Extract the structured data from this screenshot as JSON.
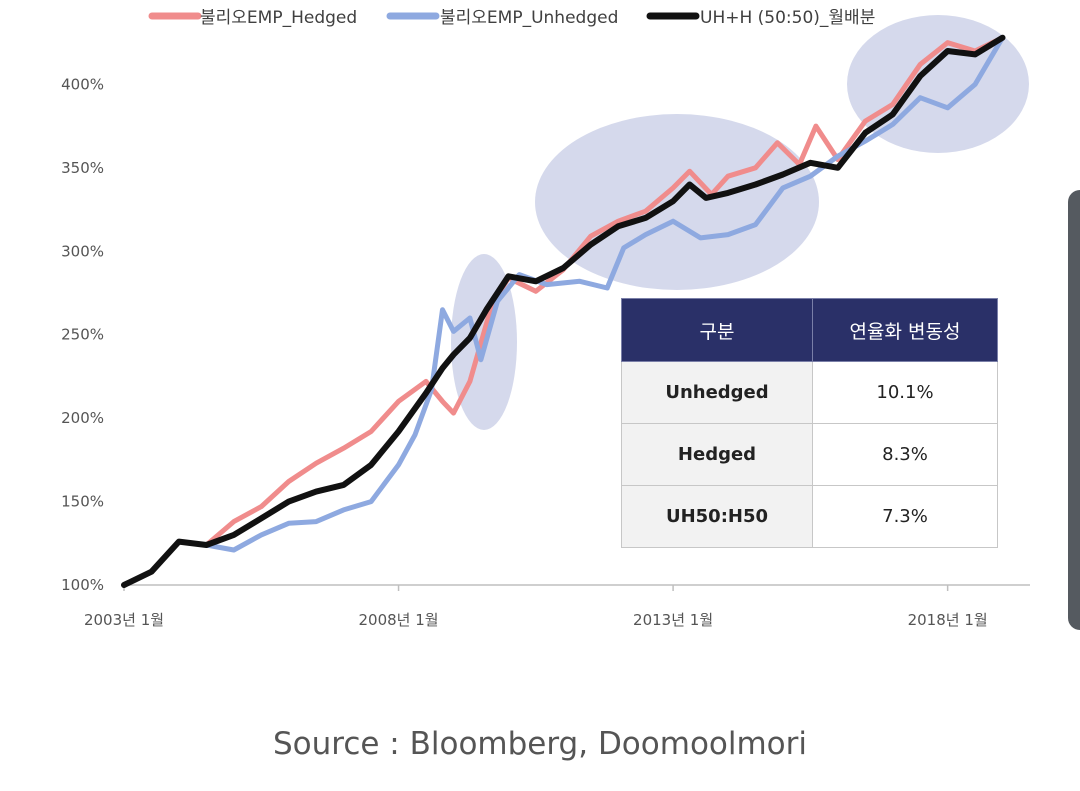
{
  "chart_data": {
    "type": "line",
    "series": [
      {
        "name": "불리오EMP_Hedged",
        "color": "#f08c8c",
        "points": [
          [
            2003.0,
            100
          ],
          [
            2003.5,
            108
          ],
          [
            2004.0,
            126
          ],
          [
            2004.5,
            124
          ],
          [
            2005.0,
            138
          ],
          [
            2005.5,
            147
          ],
          [
            2006.0,
            162
          ],
          [
            2006.5,
            173
          ],
          [
            2007.0,
            182
          ],
          [
            2007.5,
            192
          ],
          [
            2008.0,
            210
          ],
          [
            2008.5,
            222
          ],
          [
            2008.8,
            210
          ],
          [
            2009.0,
            203
          ],
          [
            2009.3,
            222
          ],
          [
            2009.7,
            268
          ],
          [
            2010.0,
            284
          ],
          [
            2010.5,
            276
          ],
          [
            2011.0,
            289
          ],
          [
            2011.5,
            309
          ],
          [
            2012.0,
            318
          ],
          [
            2012.5,
            324
          ],
          [
            2013.0,
            338
          ],
          [
            2013.3,
            348
          ],
          [
            2013.7,
            334
          ],
          [
            2014.0,
            345
          ],
          [
            2014.5,
            350
          ],
          [
            2014.9,
            365
          ],
          [
            2015.3,
            352
          ],
          [
            2015.6,
            375
          ],
          [
            2016.0,
            355
          ],
          [
            2016.5,
            378
          ],
          [
            2017.0,
            388
          ],
          [
            2017.5,
            412
          ],
          [
            2018.0,
            425
          ],
          [
            2018.5,
            420
          ],
          [
            2019.0,
            428
          ]
        ]
      },
      {
        "name": "불리오EMP_Unhedged",
        "color": "#8ea9e0",
        "points": [
          [
            2003.0,
            100
          ],
          [
            2003.5,
            108
          ],
          [
            2004.0,
            126
          ],
          [
            2004.5,
            124
          ],
          [
            2005.0,
            121
          ],
          [
            2005.5,
            130
          ],
          [
            2006.0,
            137
          ],
          [
            2006.5,
            138
          ],
          [
            2007.0,
            145
          ],
          [
            2007.5,
            150
          ],
          [
            2008.0,
            172
          ],
          [
            2008.3,
            190
          ],
          [
            2008.6,
            217
          ],
          [
            2008.8,
            265
          ],
          [
            2009.0,
            252
          ],
          [
            2009.3,
            260
          ],
          [
            2009.5,
            235
          ],
          [
            2009.8,
            270
          ],
          [
            2010.2,
            286
          ],
          [
            2010.7,
            280
          ],
          [
            2011.3,
            282
          ],
          [
            2011.8,
            278
          ],
          [
            2012.1,
            302
          ],
          [
            2012.5,
            310
          ],
          [
            2013.0,
            318
          ],
          [
            2013.5,
            308
          ],
          [
            2014.0,
            310
          ],
          [
            2014.5,
            316
          ],
          [
            2015.0,
            338
          ],
          [
            2015.5,
            345
          ],
          [
            2016.0,
            357
          ],
          [
            2016.5,
            366
          ],
          [
            2017.0,
            376
          ],
          [
            2017.5,
            392
          ],
          [
            2018.0,
            386
          ],
          [
            2018.5,
            400
          ],
          [
            2019.0,
            428
          ]
        ]
      },
      {
        "name": "UH+H (50:50)_월배분",
        "color": "#111111",
        "points": [
          [
            2003.0,
            100
          ],
          [
            2003.5,
            108
          ],
          [
            2004.0,
            126
          ],
          [
            2004.5,
            124
          ],
          [
            2005.0,
            130
          ],
          [
            2005.5,
            140
          ],
          [
            2006.0,
            150
          ],
          [
            2006.5,
            156
          ],
          [
            2007.0,
            160
          ],
          [
            2007.5,
            172
          ],
          [
            2008.0,
            192
          ],
          [
            2008.5,
            215
          ],
          [
            2008.8,
            230
          ],
          [
            2009.0,
            238
          ],
          [
            2009.3,
            248
          ],
          [
            2009.6,
            265
          ],
          [
            2010.0,
            285
          ],
          [
            2010.5,
            282
          ],
          [
            2011.0,
            290
          ],
          [
            2011.5,
            304
          ],
          [
            2012.0,
            315
          ],
          [
            2012.5,
            320
          ],
          [
            2013.0,
            330
          ],
          [
            2013.3,
            340
          ],
          [
            2013.6,
            332
          ],
          [
            2014.0,
            335
          ],
          [
            2014.5,
            340
          ],
          [
            2015.0,
            346
          ],
          [
            2015.5,
            353
          ],
          [
            2016.0,
            350
          ],
          [
            2016.5,
            371
          ],
          [
            2017.0,
            382
          ],
          [
            2017.5,
            405
          ],
          [
            2018.0,
            420
          ],
          [
            2018.5,
            418
          ],
          [
            2019.0,
            428
          ]
        ]
      }
    ],
    "x_ticks": [
      "2003년 1월",
      "2008년 1월",
      "2013년 1월",
      "2018년 1월"
    ],
    "x_tick_values": [
      2003,
      2008,
      2013,
      2018
    ],
    "y_ticks": [
      "100%",
      "150%",
      "200%",
      "250%",
      "300%",
      "350%",
      "400%"
    ],
    "y_tick_values": [
      100,
      150,
      200,
      250,
      300,
      350,
      400
    ],
    "xlim": [
      2003,
      2019.5
    ],
    "ylim": [
      100,
      432
    ],
    "grid": false,
    "legend": "top"
  },
  "table": {
    "headers": [
      "구분",
      "연율화 변동성"
    ],
    "rows": [
      {
        "category": "Unhedged",
        "value": "10.1%"
      },
      {
        "category": "Hedged",
        "value": "8.3%"
      },
      {
        "category": "UH50:H50",
        "value": "7.3%"
      }
    ]
  },
  "source_text": "Source : Bloomberg, Doomoolmori",
  "highlight_color": "#d5d9ec"
}
